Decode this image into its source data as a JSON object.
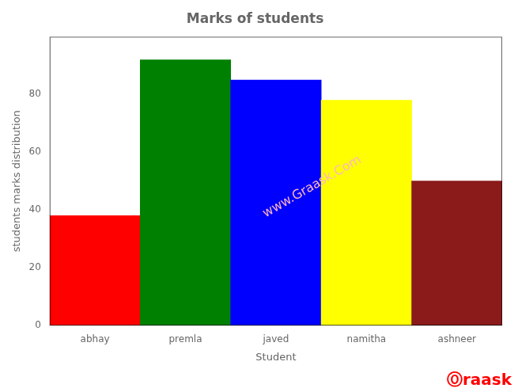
{
  "chart_data": {
    "type": "bar",
    "title": "Marks of students",
    "x_label": "Student",
    "y_label": "students marks distribution",
    "categories": [
      "abhay",
      "premla",
      "javed",
      "namitha",
      "ashneer"
    ],
    "values": [
      38,
      92,
      85,
      78,
      50
    ],
    "colors": [
      "red",
      "green",
      "blue",
      "yellow",
      "#8B1A1A"
    ],
    "ylim": [
      0,
      100
    ],
    "yticks": [
      0,
      20,
      40,
      60,
      80
    ],
    "grid": false,
    "annotations": [
      {
        "text": "www.Graask.Com",
        "color": "#ffb6c1"
      },
      {
        "text": "Ⓞraask",
        "color": "#ff0000"
      }
    ]
  }
}
